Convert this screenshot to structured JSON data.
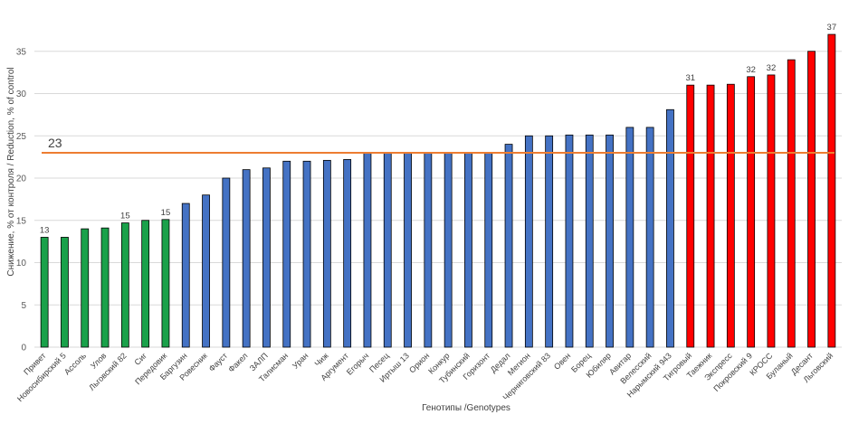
{
  "chart_data": {
    "type": "bar",
    "title": "",
    "xlabel": "Генотипы /Genotypes",
    "ylabel": "Снижение, % от контроля / Reduction, % of control",
    "ylim": [
      0,
      40
    ],
    "yticks": [
      0,
      5,
      10,
      15,
      20,
      25,
      30,
      35
    ],
    "grid": true,
    "colors": {
      "green": "#1aa14a",
      "blue": "#4472c4",
      "red": "#ff0000",
      "reference": "#ed7d31"
    },
    "reference_line": {
      "value": 23,
      "label": "23"
    },
    "categories": [
      "Привет",
      "Новосибирский 5",
      "Ассоль",
      "Улов",
      "Льговский 82",
      "Сиг",
      "Передовик",
      "Баргузин",
      "Ровесник",
      "Фауст",
      "Факел",
      "ЗАЛП",
      "Талисман",
      "Уран",
      "Чиж",
      "Аргумент",
      "Егорыч",
      "Песец",
      "Иртыш 13",
      "Орион",
      "Конкур",
      "Тубинский",
      "Горизонт",
      "Дедал",
      "Мегион",
      "Черниговский 83",
      "Овен",
      "Борец",
      "Юбиляр",
      "Авитар",
      "Велесский",
      "Нарымский 943",
      "Тигровый",
      "Таежник",
      "Экспресс",
      "Покровский 9",
      "КРОСС",
      "Буланый",
      "Десант",
      "Льговский"
    ],
    "values": [
      13,
      13,
      14,
      14.1,
      14.7,
      15,
      15.1,
      17,
      18,
      20,
      21,
      21.2,
      22,
      22,
      22.1,
      22.2,
      23,
      23,
      23,
      23,
      23,
      23,
      23,
      24,
      25,
      25,
      25.1,
      25.1,
      25.1,
      26,
      26,
      28.1,
      31,
      31,
      31.1,
      32,
      32.2,
      34,
      35,
      37
    ],
    "bar_colors": [
      "green",
      "green",
      "green",
      "green",
      "green",
      "green",
      "green",
      "blue",
      "blue",
      "blue",
      "blue",
      "blue",
      "blue",
      "blue",
      "blue",
      "blue",
      "blue",
      "blue",
      "blue",
      "blue",
      "blue",
      "blue",
      "blue",
      "blue",
      "blue",
      "blue",
      "blue",
      "blue",
      "blue",
      "blue",
      "blue",
      "blue",
      "red",
      "red",
      "red",
      "red",
      "red",
      "red",
      "red",
      "red"
    ],
    "data_labels": [
      {
        "index": 0,
        "text": "13"
      },
      {
        "index": 4,
        "text": "15"
      },
      {
        "index": 6,
        "text": "15"
      },
      {
        "index": 32,
        "text": "31"
      },
      {
        "index": 35,
        "text": "32"
      },
      {
        "index": 36,
        "text": "32"
      },
      {
        "index": 39,
        "text": "37"
      }
    ]
  }
}
